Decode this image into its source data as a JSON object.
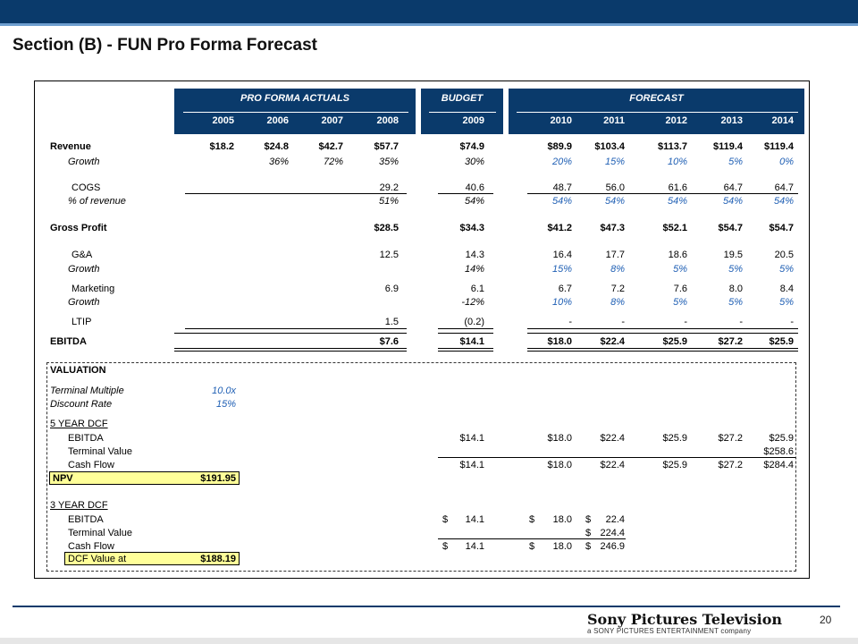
{
  "title": "Section (B) - FUN Pro Forma Forecast",
  "groups": {
    "actuals": "PRO FORMA ACTUALS",
    "budget": "BUDGET",
    "forecast": "FORECAST"
  },
  "years": [
    "2005",
    "2006",
    "2007",
    "2008",
    "2009",
    "2010",
    "2011",
    "2012",
    "2013",
    "2014"
  ],
  "rows": [
    {
      "label": "Revenue",
      "style": "bold",
      "values": [
        "$18.2",
        "$24.8",
        "$42.7",
        "$57.7",
        "$74.9",
        "$89.9",
        "$103.4",
        "$113.7",
        "$119.4",
        "$119.4"
      ]
    },
    {
      "label": "Growth",
      "style": "italic",
      "values": [
        "",
        "36%",
        "72%",
        "35%",
        "30%",
        "20%",
        "15%",
        "10%",
        "5%",
        "0%"
      ]
    },
    {
      "label": "COGS",
      "style": "normal",
      "values": [
        "",
        "",
        "",
        "29.2",
        "40.6",
        "48.7",
        "56.0",
        "61.6",
        "64.7",
        "64.7"
      ]
    },
    {
      "label": "% of revenue",
      "style": "italic",
      "values": [
        "",
        "",
        "",
        "51%",
        "54%",
        "54%",
        "54%",
        "54%",
        "54%",
        "54%"
      ]
    },
    {
      "label": "Gross Profit",
      "style": "bold",
      "values": [
        "",
        "",
        "",
        "$28.5",
        "$34.3",
        "$41.2",
        "$47.3",
        "$52.1",
        "$54.7",
        "$54.7"
      ]
    },
    {
      "label": "G&A",
      "style": "normal",
      "values": [
        "",
        "",
        "",
        "12.5",
        "14.3",
        "16.4",
        "17.7",
        "18.6",
        "19.5",
        "20.5"
      ]
    },
    {
      "label": "Growth",
      "style": "italic",
      "values": [
        "",
        "",
        "",
        "",
        "14%",
        "15%",
        "8%",
        "5%",
        "5%",
        "5%"
      ]
    },
    {
      "label": "Marketing",
      "style": "normal",
      "values": [
        "",
        "",
        "",
        "6.9",
        "6.1",
        "6.7",
        "7.2",
        "7.6",
        "8.0",
        "8.4"
      ]
    },
    {
      "label": "Growth",
      "style": "italic",
      "values": [
        "",
        "",
        "",
        "",
        "-12%",
        "10%",
        "8%",
        "5%",
        "5%",
        "5%"
      ]
    },
    {
      "label": "LTIP",
      "style": "normal",
      "values": [
        "",
        "",
        "",
        "1.5",
        "(0.2)",
        "-",
        "-",
        "-",
        "-",
        "-"
      ]
    },
    {
      "label": "EBITDA",
      "style": "bold",
      "values": [
        "",
        "",
        "",
        "$7.6",
        "$14.1",
        "$18.0",
        "$22.4",
        "$25.9",
        "$27.2",
        "$25.9"
      ]
    }
  ],
  "valuation": {
    "heading": "VALUATION",
    "terminal_multiple_label": "Terminal Multiple",
    "terminal_multiple": "10.0x",
    "discount_rate_label": "Discount Rate",
    "discount_rate": "15%",
    "dcf5": {
      "heading": "5 YEAR DCF",
      "ebitda_label": "EBITDA",
      "ebitda": [
        "$14.1",
        "$18.0",
        "$22.4",
        "$25.9",
        "$27.2",
        "$25.9"
      ],
      "tv_label": "Terminal Value",
      "tv": "$258.6",
      "cf_label": "Cash Flow",
      "cf": [
        "$14.1",
        "$18.0",
        "$22.4",
        "$25.9",
        "$27.2",
        "$284.4"
      ],
      "result_label": "NPV",
      "result_value": "$191.95"
    },
    "dcf3": {
      "heading": "3 YEAR DCF",
      "ebitda_label": "EBITDA",
      "ebitda": [
        "14.1",
        "18.0",
        "22.4"
      ],
      "tv_label": "Terminal Value",
      "tv": "224.4",
      "cf_label": "Cash Flow",
      "cf": [
        "14.1",
        "18.0",
        "246.9"
      ],
      "result_label": "DCF Value at",
      "result_value": "$188.19",
      "currency": "$"
    }
  },
  "footer": {
    "logo_main": "Sony Pictures Television",
    "logo_sub": "a SONY PICTURES ENTERTAINMENT company",
    "page_number": "20"
  }
}
